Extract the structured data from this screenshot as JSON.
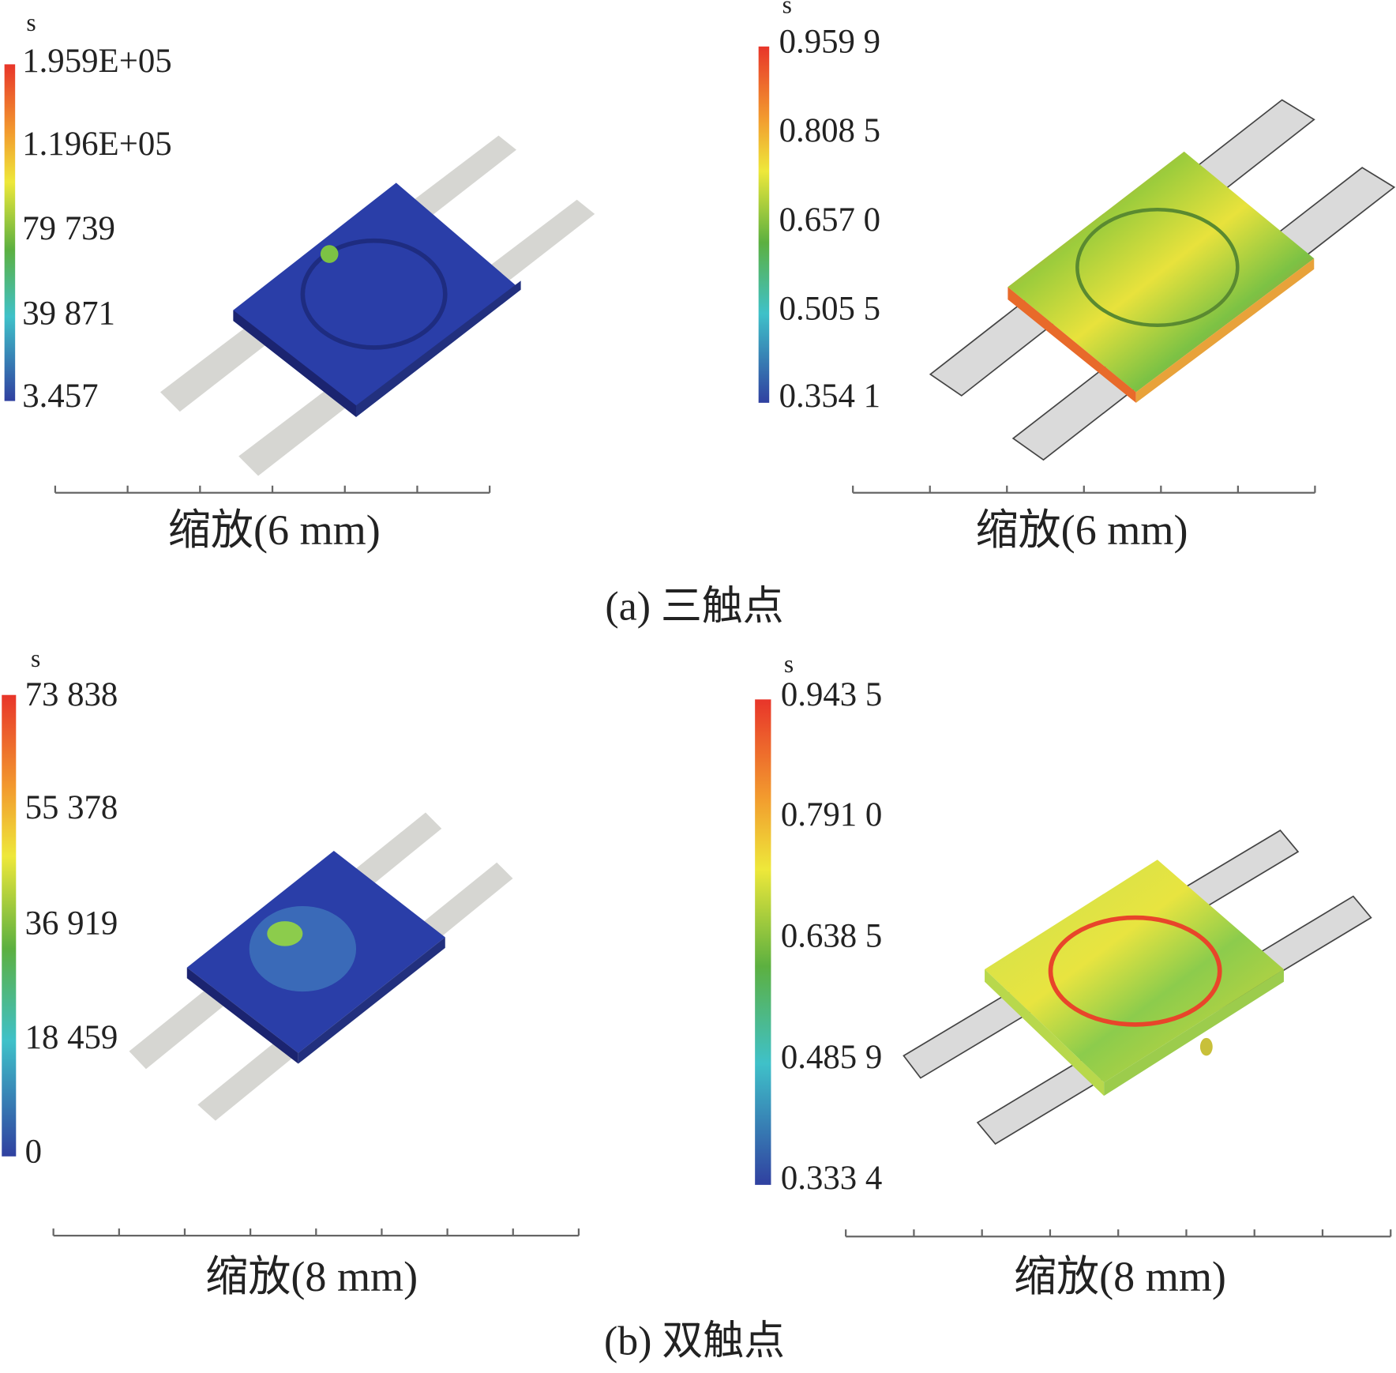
{
  "panels": [
    {
      "unit": "s",
      "legend_labels": [
        "1.959E+05",
        "1.196E+05",
        "79 739",
        "39 871",
        "3.457"
      ],
      "scale_label": "缩放(6 mm)"
    },
    {
      "unit": "s",
      "legend_labels": [
        "0.959 9",
        "0.808 5",
        "0.657 0",
        "0.505 5",
        "0.354 1"
      ],
      "scale_label": "缩放(6 mm)"
    },
    {
      "unit": "s",
      "legend_labels": [
        "73 838",
        "55 378",
        "36 919",
        "18 459",
        "0"
      ],
      "scale_label": "缩放(8 mm)"
    },
    {
      "unit": "s",
      "legend_labels": [
        "0.943 5",
        "0.791 0",
        "0.638 5",
        "0.485 9",
        "0.333 4"
      ],
      "scale_label": "缩放(8 mm)"
    }
  ],
  "captions": [
    "(a) 三触点",
    "(b) 双触点"
  ]
}
